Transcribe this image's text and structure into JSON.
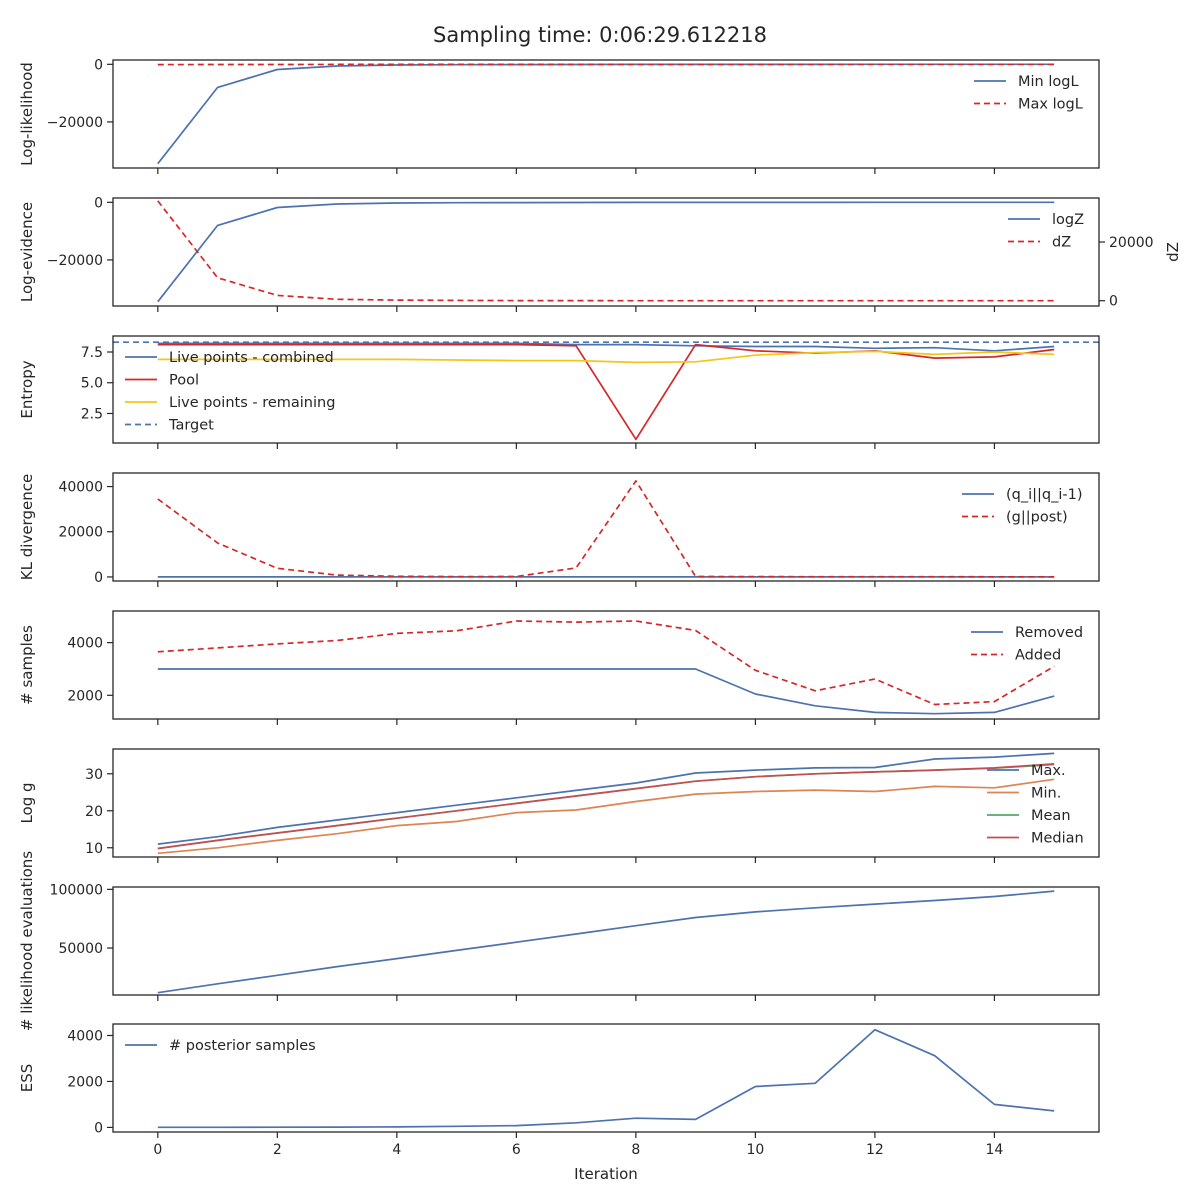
{
  "title": "Sampling time: 0:06:29.612218",
  "xlabel": "Iteration",
  "x_ticks": [
    0,
    2,
    4,
    6,
    8,
    10,
    12,
    14
  ],
  "colors": {
    "blue": "#4c72b0",
    "red": "#d62728",
    "yellow": "#f5c518",
    "orange": "#dd8452",
    "green": "#55a868",
    "brick": "#c44e52",
    "axis": "#262626"
  },
  "chart_data": [
    {
      "type": "line",
      "ylabel": "Log-likelihood",
      "ylim": [
        -36000,
        1500
      ],
      "yticks": [
        0,
        -20000
      ],
      "ytick_labels": [
        "0",
        "−20000"
      ],
      "legend": "upper-right",
      "x": [
        0,
        1,
        2,
        3,
        4,
        5,
        6,
        7,
        8,
        9,
        10,
        11,
        12,
        13,
        14,
        15
      ],
      "series": [
        {
          "name": "Min logL",
          "color": "blue",
          "dash": false,
          "values": [
            -34500,
            -8000,
            -1800,
            -600,
            -250,
            -120,
            -80,
            -60,
            -40,
            -30,
            -20,
            -15,
            -10,
            -8,
            -6,
            -5
          ]
        },
        {
          "name": "Max logL",
          "color": "red",
          "dash": true,
          "values": [
            -80,
            -60,
            -50,
            -40,
            -30,
            -25,
            -20,
            -18,
            -16,
            -14,
            -12,
            -10,
            -9,
            -8,
            -7,
            -6
          ]
        }
      ]
    },
    {
      "type": "line",
      "ylabel": "Log-evidence",
      "ylabel_right": "dZ",
      "ylim": [
        -36000,
        1500
      ],
      "yticks": [
        0,
        -20000
      ],
      "ytick_labels": [
        "0",
        "−20000"
      ],
      "ylim_right": [
        -1800,
        35000
      ],
      "yticks_right": [
        0,
        20000
      ],
      "ytick_labels_right": [
        "0",
        "20000"
      ],
      "legend": "upper-right",
      "x": [
        0,
        1,
        2,
        3,
        4,
        5,
        6,
        7,
        8,
        9,
        10,
        11,
        12,
        13,
        14,
        15
      ],
      "series": [
        {
          "name": "logZ",
          "color": "blue",
          "dash": false,
          "axis": "left",
          "values": [
            -34500,
            -8000,
            -1800,
            -600,
            -250,
            -120,
            -80,
            -60,
            -40,
            -30,
            -20,
            -15,
            -10,
            -8,
            -6,
            -5
          ]
        },
        {
          "name": "dZ",
          "color": "red",
          "dash": true,
          "axis": "right",
          "values": [
            34000,
            7800,
            1800,
            500,
            200,
            100,
            50,
            30,
            20,
            15,
            10,
            8,
            6,
            5,
            4,
            3
          ]
        }
      ]
    },
    {
      "type": "line",
      "ylabel": "Entropy",
      "ylim": [
        0.1,
        8.8
      ],
      "yticks": [
        2.5,
        5.0,
        7.5
      ],
      "ytick_labels": [
        "2.5",
        "5.0",
        "7.5"
      ],
      "legend": "upper-left",
      "x": [
        0,
        1,
        2,
        3,
        4,
        5,
        6,
        7,
        8,
        9,
        10,
        11,
        12,
        13,
        14,
        15
      ],
      "series": [
        {
          "name": "Live points - combined",
          "color": "blue",
          "dash": false,
          "values": [
            8.2,
            8.2,
            8.2,
            8.2,
            8.2,
            8.2,
            8.2,
            8.1,
            8.1,
            8.0,
            7.95,
            7.95,
            7.8,
            7.85,
            7.6,
            7.95
          ]
        },
        {
          "name": "Pool",
          "color": "red",
          "dash": false,
          "values": [
            8.1,
            8.1,
            8.1,
            8.1,
            8.1,
            8.1,
            8.1,
            8.0,
            0.4,
            8.1,
            7.6,
            7.4,
            7.6,
            7.0,
            7.1,
            7.7
          ]
        },
        {
          "name": "Live points - remaining",
          "color": "yellow",
          "dash": false,
          "values": [
            6.9,
            6.9,
            6.9,
            6.9,
            6.9,
            6.85,
            6.8,
            6.8,
            6.65,
            6.7,
            7.25,
            7.45,
            7.55,
            7.3,
            7.5,
            7.3
          ]
        },
        {
          "name": "Target",
          "color": "blue",
          "dash": true,
          "hline": 8.3
        }
      ]
    },
    {
      "type": "line",
      "ylabel": "KL divergence",
      "ylim": [
        -1800,
        46000
      ],
      "yticks": [
        0,
        20000,
        40000
      ],
      "ytick_labels": [
        "0",
        "20000",
        "40000"
      ],
      "legend": "upper-right",
      "x": [
        0,
        1,
        2,
        3,
        4,
        5,
        6,
        7,
        8,
        9,
        10,
        11,
        12,
        13,
        14,
        15
      ],
      "series": [
        {
          "name": "(q_i||q_i-1)",
          "color": "blue",
          "dash": false,
          "values": [
            0,
            0,
            0,
            0,
            0,
            0,
            0,
            0,
            0,
            0,
            0,
            0,
            0,
            0,
            0,
            0
          ]
        },
        {
          "name": "(g||post)",
          "color": "red",
          "dash": true,
          "values": [
            34500,
            15000,
            3800,
            800,
            300,
            150,
            200,
            4000,
            42500,
            200,
            150,
            120,
            100,
            90,
            80,
            70
          ]
        }
      ]
    },
    {
      "type": "line",
      "ylabel": "# samples",
      "ylim": [
        1100,
        5200
      ],
      "yticks": [
        2000,
        4000
      ],
      "ytick_labels": [
        "2000",
        "4000"
      ],
      "legend": "upper-right",
      "x": [
        0,
        1,
        2,
        3,
        4,
        5,
        6,
        7,
        8,
        9,
        10,
        11,
        12,
        13,
        14,
        15
      ],
      "series": [
        {
          "name": "Removed",
          "color": "blue",
          "dash": false,
          "values": [
            3000,
            3000,
            3000,
            3000,
            3000,
            3000,
            3000,
            3000,
            3000,
            3000,
            2050,
            1600,
            1350,
            1300,
            1350,
            1970
          ]
        },
        {
          "name": "Added",
          "color": "red",
          "dash": true,
          "values": [
            3650,
            3800,
            3950,
            4080,
            4350,
            4450,
            4820,
            4780,
            4820,
            4460,
            2950,
            2170,
            2620,
            1650,
            1760,
            3100
          ]
        }
      ]
    },
    {
      "type": "line",
      "ylabel": "Log g",
      "ylim": [
        7.5,
        36.7
      ],
      "yticks": [
        10,
        20,
        30
      ],
      "ytick_labels": [
        "10",
        "20",
        "30"
      ],
      "legend": "upper-right",
      "x": [
        0,
        1,
        2,
        3,
        4,
        5,
        6,
        7,
        8,
        9,
        10,
        11,
        12,
        13,
        14,
        15
      ],
      "series": [
        {
          "name": "Max.",
          "color": "blue",
          "dash": false,
          "values": [
            11,
            13,
            15.5,
            17.5,
            19.5,
            21.5,
            23.5,
            25.5,
            27.5,
            30.2,
            31,
            31.6,
            31.7,
            34,
            34.5,
            35.5
          ]
        },
        {
          "name": "Min.",
          "color": "orange",
          "dash": false,
          "values": [
            8.5,
            10,
            12,
            13.8,
            16,
            17.1,
            19.5,
            20.2,
            22.5,
            24.5,
            25.2,
            25.6,
            25.2,
            26.6,
            26.2,
            28.5
          ]
        },
        {
          "name": "Mean",
          "color": "green",
          "dash": false,
          "values": [
            9.8,
            12,
            14,
            16,
            18,
            20,
            22,
            24,
            26,
            28,
            29.2,
            30,
            30.5,
            31,
            31.5,
            32.5
          ]
        },
        {
          "name": "Median",
          "color": "brick",
          "dash": false,
          "values": [
            9.8,
            12,
            14,
            16,
            18,
            20,
            22,
            24,
            26,
            28,
            29.2,
            30,
            30.5,
            31,
            31.6,
            32.7
          ]
        }
      ]
    },
    {
      "type": "line",
      "ylabel": "# likelihood evaluations",
      "ylim": [
        10000,
        102000
      ],
      "yticks": [
        50000,
        100000
      ],
      "ytick_labels": [
        "50000",
        "100000"
      ],
      "x": [
        0,
        1,
        2,
        3,
        4,
        5,
        6,
        7,
        8,
        9,
        10,
        11,
        12,
        13,
        14,
        15
      ],
      "series": [
        {
          "color": "blue",
          "dash": false,
          "values": [
            12000,
            19500,
            26800,
            34200,
            41000,
            48000,
            55000,
            62000,
            69000,
            76000,
            80800,
            84300,
            87400,
            90500,
            93900,
            98500
          ]
        }
      ]
    },
    {
      "type": "line",
      "ylabel": "ESS",
      "ylim": [
        -200,
        4500
      ],
      "yticks": [
        0,
        2000,
        4000
      ],
      "ytick_labels": [
        "0",
        "2000",
        "4000"
      ],
      "legend": "upper-left",
      "x": [
        0,
        1,
        2,
        3,
        4,
        5,
        6,
        7,
        8,
        9,
        10,
        11,
        12,
        13,
        14,
        15
      ],
      "series": [
        {
          "name": "# posterior samples",
          "color": "blue",
          "dash": false,
          "values": [
            5,
            5,
            10,
            15,
            20,
            50,
            80,
            200,
            400,
            350,
            1780,
            1920,
            4250,
            3120,
            1000,
            720
          ]
        }
      ]
    }
  ]
}
